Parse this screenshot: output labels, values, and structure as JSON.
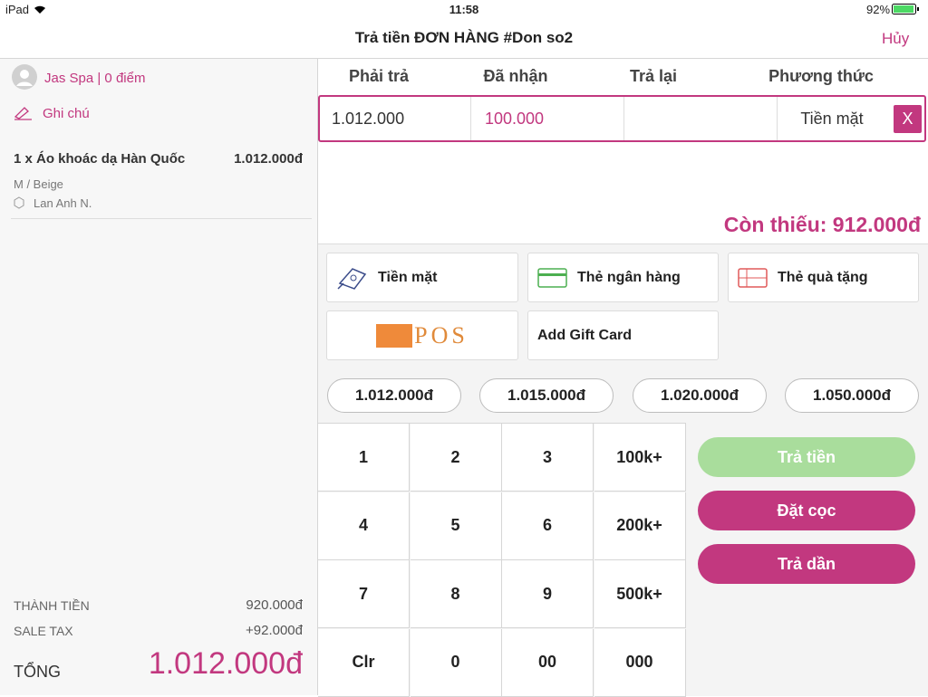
{
  "status_bar": {
    "device": "iPad",
    "time": "11:58",
    "battery": "92%"
  },
  "header": {
    "title": "Trả tiền ĐƠN HÀNG #Don so2",
    "cancel": "Hủy"
  },
  "customer": {
    "name": "Jas Spa | 0 điểm",
    "note": "Ghi chú"
  },
  "items": [
    {
      "title": "1 x Áo khoác dạ Hàn Quốc",
      "price": "1.012.000đ",
      "variant": "M / Beige",
      "staff": "Lan Anh N."
    }
  ],
  "summary": {
    "subtotal_label": "THÀNH TIỀN",
    "subtotal": "920.000đ",
    "tax_label": "SALE TAX",
    "tax": "+92.000đ",
    "total_label": "TỔNG",
    "total": "1.012.000đ"
  },
  "payment_table": {
    "headers": [
      "Phải trả",
      "Đã nhận",
      "Trả lại",
      "Phương thức"
    ],
    "due": "1.012.000",
    "received": "100.000",
    "method": "Tiền mặt",
    "remove": "X"
  },
  "remaining": "Còn thiếu: 912.000đ",
  "methods": [
    "Tiền mặt",
    "Thẻ ngân hàng",
    "Thẻ quà tặng"
  ],
  "pos_logo": "POS",
  "add_gift_card": "Add Gift Card",
  "quick_amounts": [
    "1.012.000đ",
    "1.015.000đ",
    "1.020.000đ",
    "1.050.000đ"
  ],
  "keypad": [
    "1",
    "2",
    "3",
    "100k+",
    "4",
    "5",
    "6",
    "200k+",
    "7",
    "8",
    "9",
    "500k+",
    "Clr",
    "0",
    "00",
    "000"
  ],
  "actions": [
    "Trả tiền",
    "Đặt cọc",
    "Trả dần"
  ]
}
